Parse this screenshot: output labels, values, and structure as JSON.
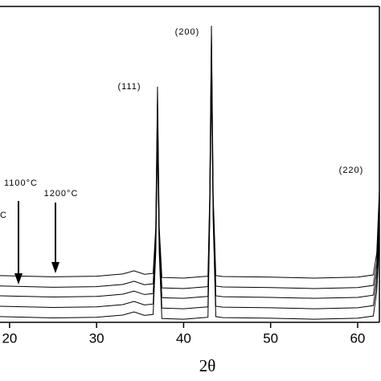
{
  "chart_data": {
    "type": "line",
    "x_label": "2θ",
    "x": [
      18.9,
      25,
      30,
      33,
      34.3,
      35.5,
      36.5,
      36.8,
      37.0,
      37.2,
      37.5,
      40,
      42.8,
      43.0,
      43.2,
      43.4,
      43.7,
      44.5,
      50,
      55,
      60,
      61.8,
      62.2,
      62.5
    ],
    "series": [
      {
        "color": "#000000",
        "values": [
          14.8,
          14.4,
          14.6,
          15.3,
          16.3,
          15.2,
          15.5,
          30,
          74.6,
          30,
          14.2,
          14.0,
          14.6,
          40,
          93.9,
          40,
          14.8,
          14.5,
          14.3,
          14.0,
          14.3,
          15,
          22,
          42
        ]
      },
      {
        "color": "#000000",
        "values": [
          11.5,
          11.1,
          11.3,
          12.0,
          13.0,
          11.9,
          12.2,
          28,
          70,
          28,
          10.9,
          10.7,
          11.3,
          38,
          90,
          38,
          11.5,
          11.2,
          11.0,
          10.7,
          11.0,
          11.7,
          19,
          38
        ]
      },
      {
        "color": "#000000",
        "values": [
          8.4,
          8.0,
          8.2,
          8.9,
          9.9,
          8.8,
          9.1,
          26,
          66,
          26,
          7.8,
          7.6,
          8.2,
          36,
          86,
          36,
          8.4,
          8.1,
          7.9,
          7.6,
          7.9,
          8.6,
          16,
          34
        ]
      },
      {
        "color": "#000000",
        "values": [
          5.1,
          4.7,
          4.9,
          5.6,
          6.6,
          5.5,
          5.8,
          24,
          62,
          24,
          4.5,
          4.3,
          4.9,
          34,
          82,
          34,
          5.1,
          4.8,
          4.6,
          4.3,
          4.6,
          5.3,
          13,
          30
        ]
      },
      {
        "color": "#000000",
        "values": [
          1.8,
          1.4,
          1.6,
          2.3,
          3.3,
          2.2,
          2.5,
          22,
          58,
          22,
          1.2,
          1.0,
          1.6,
          32,
          78,
          32,
          1.8,
          1.5,
          1.3,
          1.0,
          1.3,
          2.0,
          10,
          26
        ]
      }
    ],
    "xlim": [
      18.9,
      62.5
    ],
    "xticks": [
      20,
      30,
      40,
      50,
      60
    ],
    "ylim": [
      0,
      100
    ],
    "annotations": [
      "(111)",
      "(200)",
      "(220)",
      "1100°C",
      "1200°C",
      "C"
    ]
  }
}
